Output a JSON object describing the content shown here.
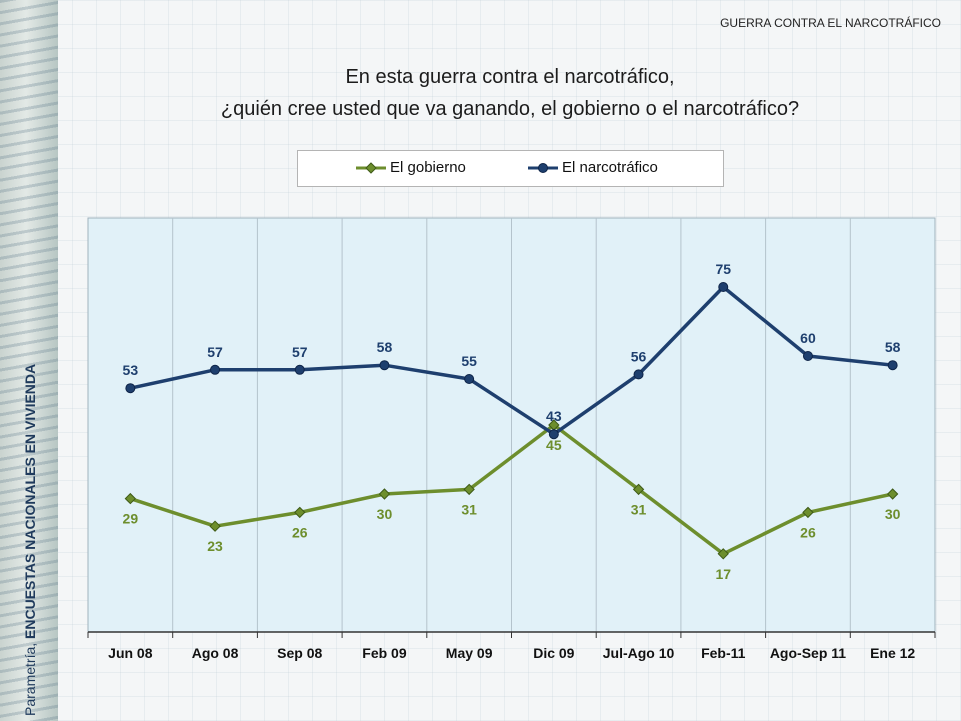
{
  "header": {
    "tag": "GUERRA CONTRA EL NARCOTRÁFICO"
  },
  "side": {
    "prefix": "Parametría, ",
    "bold": "ENCUESTAS NACIONALES EN VIVIENDA"
  },
  "title": {
    "line1": "En esta guerra contra el narcotráfico,",
    "line2": "¿quién cree usted que va ganando, el gobierno o el narcotráfico?"
  },
  "colors": {
    "gobierno": "#6d8e2d",
    "narco": "#1e3f6e",
    "plot_bg": "#e1f1f8"
  },
  "chart_data": {
    "type": "line",
    "categories": [
      "Jun 08",
      "Ago 08",
      "Sep 08",
      "Feb 09",
      "May 09",
      "Dic 09",
      "Jul-Ago 10",
      "Feb-11",
      "Ago-Sep 11",
      "Ene 12"
    ],
    "series": [
      {
        "name": "El gobierno",
        "values": [
          29,
          23,
          26,
          30,
          31,
          45,
          31,
          17,
          26,
          30
        ]
      },
      {
        "name": "El narcotráfico",
        "values": [
          53,
          57,
          57,
          58,
          55,
          43,
          56,
          75,
          60,
          58
        ]
      }
    ],
    "title": "En esta guerra contra el narcotráfico, ¿quién cree usted que va ganando, el gobierno o el narcotráfico?",
    "ylim": [
      0,
      90
    ],
    "grid": "vertical",
    "legend": "top"
  }
}
